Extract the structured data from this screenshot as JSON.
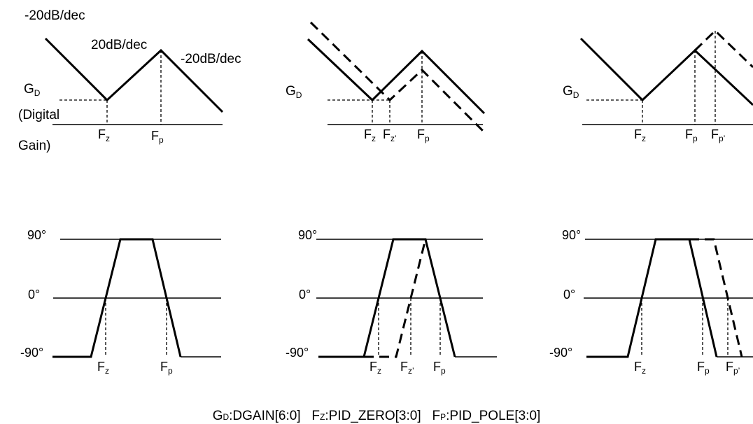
{
  "labels": {
    "slope_left": "-20dB/dec",
    "slope_mid": "20dB/dec",
    "slope_right": "-20dB/dec",
    "g": "G",
    "g_sub": "D",
    "digital": "(Digital",
    "gain": "Gain)",
    "f": "F",
    "z_sub": "z",
    "p_sub": "p",
    "z_prime_sub": "z’",
    "p_prime_sub": "p’",
    "deg_90": "90°",
    "deg_0": "0°",
    "deg_m90": "-90°"
  },
  "caption": {
    "gd": "G",
    "gd_sub": "D",
    "gd_text": ":DGAIN[6:0]",
    "fz": "F",
    "fz_sub": "Z",
    "fz_text": ":PID_ZERO[3:0]",
    "fp": "F",
    "fp_sub": "P",
    "fp_text": ":PID_POLE[3:0]"
  }
}
